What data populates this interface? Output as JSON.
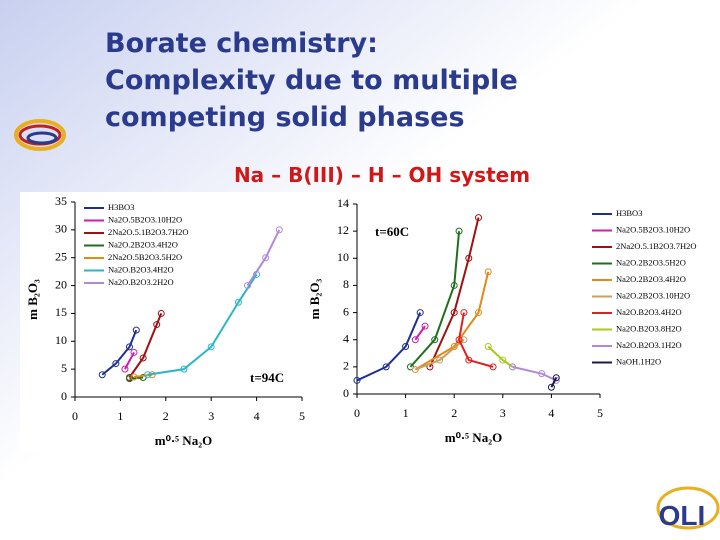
{
  "slide": {
    "title_lines": [
      "Borate chemistry:",
      "Complexity due to multiple",
      "competing solid phases"
    ],
    "subtitle": "Na – B(III) – H – OH system",
    "logo": "OLI"
  },
  "chart_data": [
    {
      "type": "line",
      "annotation": "t=94C",
      "x_label": "m⁰·⁵ Na₂O",
      "y_label": "m B₂O₃",
      "xlim": [
        0,
        5
      ],
      "ylim": [
        0,
        35
      ],
      "xticks": [
        0,
        1,
        2,
        3,
        4,
        5
      ],
      "yticks": [
        0,
        5,
        10,
        15,
        20,
        25,
        30,
        35
      ],
      "grid": false,
      "legend": "upper left",
      "series": [
        {
          "name": "H3BO3",
          "color": "#1f2f8f",
          "x": [
            0.6,
            0.9,
            1.2,
            1.35
          ],
          "values": [
            4,
            6,
            9,
            12
          ]
        },
        {
          "name": "Na2O.5B2O3.10H2O",
          "color": "#cc1fa8",
          "x": [
            1.1,
            1.3
          ],
          "values": [
            5,
            8
          ]
        },
        {
          "name": "2Na2O.5.1B2O3.7H2O",
          "color": "#a01010",
          "x": [
            1.2,
            1.5,
            1.8,
            1.9
          ],
          "values": [
            3.5,
            7,
            13,
            15
          ]
        },
        {
          "name": "Na2O.2B2O3.4H2O",
          "color": "#1f6f1f",
          "x": [
            1.2,
            1.5
          ],
          "values": [
            3.3,
            3.5
          ]
        },
        {
          "name": "2Na2O.5B2O3.5H2O",
          "color": "#e08a1a",
          "x": [
            1.3,
            1.7
          ],
          "values": [
            3.6,
            4.0
          ]
        },
        {
          "name": "Na2O.B2O3.4H2O",
          "color": "#2ab5c8",
          "x": [
            1.6,
            2.4,
            3.0,
            3.6,
            4.0
          ],
          "values": [
            4,
            5,
            9,
            17,
            22
          ]
        },
        {
          "name": "Na2O.B2O3.2H2O",
          "color": "#b08ad8",
          "x": [
            3.8,
            4.2,
            4.5
          ],
          "values": [
            20,
            25,
            30
          ]
        }
      ]
    },
    {
      "type": "line",
      "annotation": "t=60C",
      "x_label": "m⁰·⁵ Na₂O",
      "y_label": "m B₂O₃",
      "xlim": [
        0,
        5
      ],
      "ylim": [
        0,
        14
      ],
      "xticks": [
        0,
        1,
        2,
        3,
        4,
        5
      ],
      "yticks": [
        0,
        2,
        4,
        6,
        8,
        10,
        12,
        14
      ],
      "grid": false,
      "legend": "right",
      "series": [
        {
          "name": "H3BO3",
          "color": "#1f2f8f",
          "x": [
            0,
            0.6,
            1.0,
            1.3
          ],
          "values": [
            1,
            2,
            3.5,
            6
          ]
        },
        {
          "name": "Na2O.5B2O3.10H2O",
          "color": "#cc1fa8",
          "x": [
            1.2,
            1.4
          ],
          "values": [
            4,
            5
          ]
        },
        {
          "name": "2Na2O.5.1B2O3.7H2O",
          "color": "#a01010",
          "x": [
            1.5,
            2.0,
            2.3,
            2.5
          ],
          "values": [
            2,
            6,
            10,
            13
          ]
        },
        {
          "name": "Na2O.2B2O3.5H2O",
          "color": "#1f6f1f",
          "x": [
            1.1,
            1.6,
            2.0,
            2.1
          ],
          "values": [
            2,
            4,
            8,
            12
          ]
        },
        {
          "name": "Na2O.2B2O3.4H2O",
          "color": "#e08a1a",
          "x": [
            1.2,
            2.0,
            2.5,
            2.7
          ],
          "values": [
            1.8,
            3.5,
            6,
            9
          ]
        },
        {
          "name": "Na2O.2B2O3.10H2O",
          "color": "#c8a060",
          "x": [
            1.2,
            1.7,
            2.2
          ],
          "values": [
            1.8,
            2.5,
            4
          ]
        },
        {
          "name": "Na2O.B2O3.4H2O",
          "color": "#e02020",
          "x": [
            2.2,
            2.1,
            2.3,
            2.8
          ],
          "values": [
            6,
            4,
            2.5,
            2
          ]
        },
        {
          "name": "Na2O.B2O3.8H2O",
          "color": "#a8c820",
          "x": [
            2.7,
            3.0,
            3.2
          ],
          "values": [
            3.5,
            2.5,
            2
          ]
        },
        {
          "name": "Na2O.B2O3.1H2O",
          "color": "#b08ad8",
          "x": [
            3.2,
            3.8,
            4.1
          ],
          "values": [
            2,
            1.5,
            1
          ]
        },
        {
          "name": "NaOH.1H2O",
          "color": "#1a1a4a",
          "x": [
            4.0,
            4.1
          ],
          "values": [
            0.5,
            1.2
          ]
        }
      ]
    }
  ]
}
